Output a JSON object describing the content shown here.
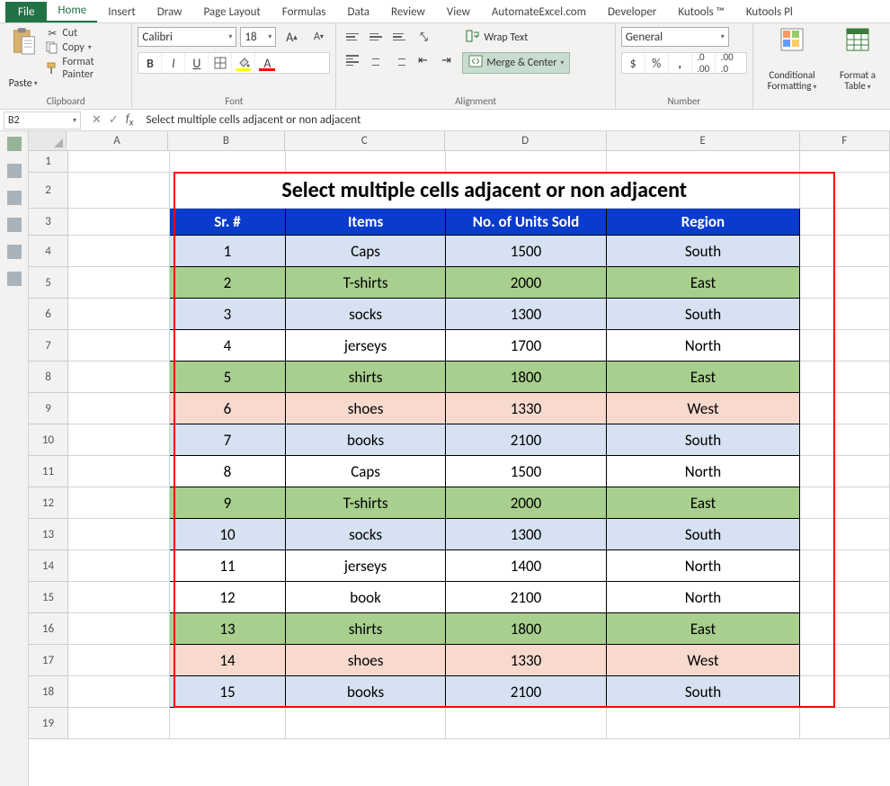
{
  "tabs": [
    "File",
    "Home",
    "Insert",
    "Draw",
    "Page Layout",
    "Formulas",
    "Data",
    "Review",
    "View",
    "AutomateExcel.com",
    "Developer",
    "Kutools ™",
    "Kutools Pl"
  ],
  "active_tab_index": 1,
  "clipboard": {
    "paste_label": "Paste",
    "cut_label": "Cut",
    "copy_label": "Copy",
    "format_painter_label": "Format Painter",
    "group_label": "Clipboard"
  },
  "font": {
    "name": "Calibri",
    "size": "18",
    "group_label": "Font"
  },
  "alignment": {
    "wrap_label": "Wrap Text",
    "merge_label": "Merge & Center",
    "group_label": "Alignment"
  },
  "number": {
    "format": "General",
    "group_label": "Number"
  },
  "styles": {
    "cond_label": "Conditional\nFormatting",
    "table_label": "Format as\nTable"
  },
  "name_box": "B2",
  "formula_value": "Select multiple cells adjacent or non adjacent",
  "columns": {
    "widths": {
      "A": 118,
      "B": 136,
      "C": 186,
      "D": 188,
      "E": 225,
      "F": 105
    },
    "labels": [
      "A",
      "B",
      "C",
      "D",
      "E",
      "F"
    ]
  },
  "row_labels": [
    1,
    2,
    3,
    4,
    5,
    6,
    7,
    8,
    9,
    10,
    11,
    12,
    13,
    14,
    15,
    16,
    17,
    18,
    19
  ],
  "row_heights": {
    "1": 24,
    "2": 40,
    "3": 30
  },
  "title_text": "Select multiple cells adjacent or non adjacent",
  "table": {
    "headers": [
      "Sr. #",
      "Items",
      "No. of Units Sold",
      "Region"
    ],
    "header_bg": "#0a3ccc",
    "header_fg": "#ffffff",
    "rows": [
      {
        "sr": 1,
        "item": "Caps",
        "units": 1500,
        "region": "South",
        "bg": "#d6e1f1"
      },
      {
        "sr": 2,
        "item": "T-shirts",
        "units": 2000,
        "region": "East",
        "bg": "#a8cf8e"
      },
      {
        "sr": 3,
        "item": "socks",
        "units": 1300,
        "region": "South",
        "bg": "#d6e1f1"
      },
      {
        "sr": 4,
        "item": "jerseys",
        "units": 1700,
        "region": "North",
        "bg": "#ffffff"
      },
      {
        "sr": 5,
        "item": "shirts",
        "units": 1800,
        "region": "East",
        "bg": "#a8cf8e"
      },
      {
        "sr": 6,
        "item": "shoes",
        "units": 1330,
        "region": "West",
        "bg": "#f7d9ce"
      },
      {
        "sr": 7,
        "item": "books",
        "units": 2100,
        "region": "South",
        "bg": "#d6e1f1"
      },
      {
        "sr": 8,
        "item": "Caps",
        "units": 1500,
        "region": "North",
        "bg": "#ffffff"
      },
      {
        "sr": 9,
        "item": "T-shirts",
        "units": 2000,
        "region": "East",
        "bg": "#a8cf8e"
      },
      {
        "sr": 10,
        "item": "socks",
        "units": 1300,
        "region": "South",
        "bg": "#d6e1f1"
      },
      {
        "sr": 11,
        "item": "jerseys",
        "units": 1400,
        "region": "North",
        "bg": "#ffffff"
      },
      {
        "sr": 12,
        "item": "book",
        "units": 2100,
        "region": "North",
        "bg": "#ffffff"
      },
      {
        "sr": 13,
        "item": "shirts",
        "units": 1800,
        "region": "East",
        "bg": "#a8cf8e"
      },
      {
        "sr": 14,
        "item": "shoes",
        "units": 1330,
        "region": "West",
        "bg": "#f7d9ce"
      },
      {
        "sr": 15,
        "item": "books",
        "units": 2100,
        "region": "South",
        "bg": "#d6e1f1"
      }
    ],
    "cell_border_color": "#000000"
  },
  "selection_border_color": "#ff0000"
}
